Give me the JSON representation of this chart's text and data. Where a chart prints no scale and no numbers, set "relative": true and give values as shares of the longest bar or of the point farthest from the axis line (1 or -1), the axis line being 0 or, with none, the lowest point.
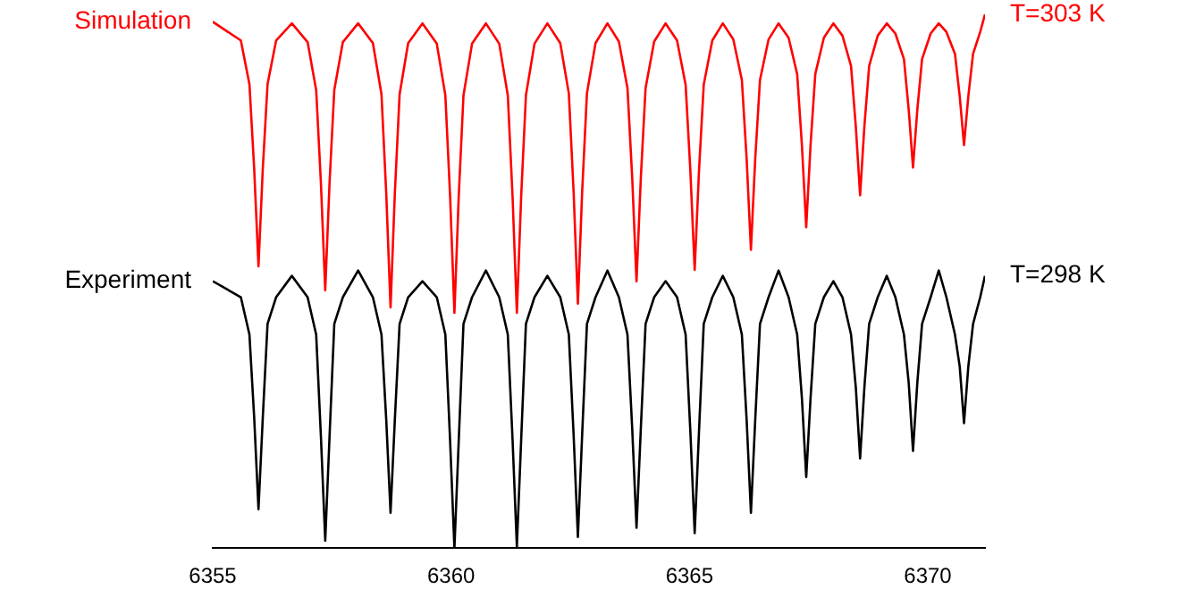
{
  "chart_data": {
    "type": "line",
    "relative": true,
    "xlim": [
      6355,
      6371.2
    ],
    "xticks": [
      6355,
      6360,
      6365,
      6370
    ],
    "grid": false,
    "x": [
      6355.0,
      6355.59,
      6355.77,
      6355.87,
      6355.96,
      6356.05,
      6356.15,
      6356.33,
      6356.66,
      6356.99,
      6357.17,
      6357.27,
      6357.36,
      6357.45,
      6357.55,
      6357.73,
      6358.05,
      6358.36,
      6358.54,
      6358.64,
      6358.73,
      6358.82,
      6358.92,
      6359.1,
      6359.4,
      6359.7,
      6359.88,
      6359.98,
      6360.07,
      6360.16,
      6360.26,
      6360.44,
      6360.73,
      6361.01,
      6361.19,
      6361.29,
      6361.38,
      6361.47,
      6361.57,
      6361.75,
      6362.02,
      6362.29,
      6362.47,
      6362.57,
      6362.66,
      6362.75,
      6362.85,
      6363.03,
      6363.28,
      6363.52,
      6363.7,
      6363.8,
      6363.89,
      6363.98,
      6364.08,
      6364.26,
      6364.5,
      6364.74,
      6364.92,
      6365.02,
      6365.11,
      6365.2,
      6365.3,
      6365.48,
      6365.7,
      6365.92,
      6366.1,
      6366.2,
      6366.29,
      6366.38,
      6366.48,
      6366.66,
      6366.87,
      6367.08,
      6367.26,
      6367.36,
      6367.45,
      6367.54,
      6367.64,
      6367.82,
      6368.02,
      6368.21,
      6368.39,
      6368.49,
      6368.58,
      6368.67,
      6368.77,
      6368.95,
      6369.14,
      6369.32,
      6369.5,
      6369.6,
      6369.69,
      6369.78,
      6369.88,
      6370.06,
      6370.23,
      6370.39,
      6370.57,
      6370.67,
      6370.76,
      6370.85,
      6370.95,
      6371.1,
      6371.2
    ],
    "series": [
      {
        "name": "Simulation",
        "color": "#ff0000",
        "values": [
          0.986,
          0.951,
          0.869,
          0.71,
          0.528,
          0.71,
          0.869,
          0.951,
          0.983,
          0.948,
          0.858,
          0.683,
          0.483,
          0.683,
          0.858,
          0.948,
          0.983,
          0.946,
          0.85,
          0.664,
          0.451,
          0.664,
          0.85,
          0.946,
          0.983,
          0.945,
          0.848,
          0.658,
          0.441,
          0.658,
          0.848,
          0.945,
          0.983,
          0.945,
          0.848,
          0.658,
          0.441,
          0.658,
          0.848,
          0.945,
          0.983,
          0.946,
          0.852,
          0.668,
          0.458,
          0.668,
          0.852,
          0.946,
          0.983,
          0.949,
          0.862,
          0.693,
          0.5,
          0.693,
          0.862,
          0.949,
          0.983,
          0.951,
          0.868,
          0.706,
          0.521,
          0.706,
          0.868,
          0.951,
          0.983,
          0.953,
          0.877,
          0.729,
          0.559,
          0.729,
          0.877,
          0.953,
          0.983,
          0.956,
          0.888,
          0.754,
          0.601,
          0.754,
          0.888,
          0.956,
          0.983,
          0.96,
          0.903,
          0.79,
          0.661,
          0.79,
          0.903,
          0.96,
          0.983,
          0.964,
          0.916,
          0.821,
          0.713,
          0.821,
          0.916,
          0.964,
          0.983,
          0.967,
          0.926,
          0.846,
          0.755,
          0.846,
          0.926,
          0.967,
          1.0
        ]
      },
      {
        "name": "Experiment",
        "color": "#000000",
        "values": [
          0.5,
          0.47,
          0.4,
          0.244,
          0.073,
          0.244,
          0.42,
          0.47,
          0.51,
          0.47,
          0.4,
          0.208,
          0.014,
          0.208,
          0.42,
          0.47,
          0.52,
          0.47,
          0.4,
          0.24,
          0.066,
          0.24,
          0.42,
          0.47,
          0.5,
          0.47,
          0.4,
          0.2,
          0.0,
          0.2,
          0.42,
          0.47,
          0.52,
          0.47,
          0.4,
          0.202,
          0.003,
          0.202,
          0.42,
          0.47,
          0.51,
          0.47,
          0.4,
          0.213,
          0.021,
          0.213,
          0.42,
          0.47,
          0.52,
          0.47,
          0.4,
          0.223,
          0.038,
          0.223,
          0.42,
          0.47,
          0.5,
          0.47,
          0.4,
          0.217,
          0.028,
          0.217,
          0.42,
          0.47,
          0.51,
          0.47,
          0.4,
          0.24,
          0.066,
          0.24,
          0.42,
          0.47,
          0.52,
          0.47,
          0.4,
          0.28,
          0.133,
          0.28,
          0.42,
          0.47,
          0.5,
          0.47,
          0.4,
          0.301,
          0.168,
          0.301,
          0.42,
          0.47,
          0.51,
          0.47,
          0.4,
          0.309,
          0.182,
          0.309,
          0.42,
          0.47,
          0.52,
          0.47,
          0.4,
          0.34,
          0.234,
          0.34,
          0.42,
          0.47,
          0.51
        ]
      }
    ],
    "annotations": [
      "T=303 K",
      "T=298 K"
    ]
  }
}
